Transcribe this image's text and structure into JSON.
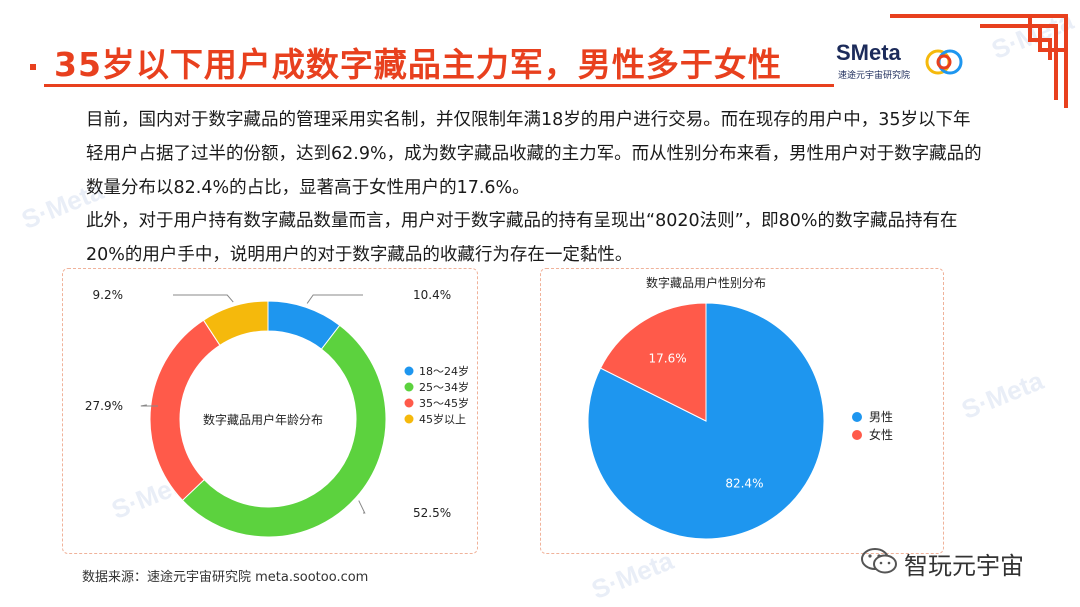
{
  "header": {
    "title": "35岁以下用户成数字藏品主力军，男性多于女性"
  },
  "logo": {
    "word": "SMeta",
    "sub": "速途元宇宙研究院"
  },
  "body": {
    "para1": "目前，国内对于数字藏品的管理采用实名制，并仅限制年满18岁的用户进行交易。而在现存的用户中，35岁以下年轻用户占据了过半的份额，达到62.9%，成为数字藏品收藏的主力军。而从性别分布来看，男性用户对于数字藏品的数量分布以82.4%的占比，显著高于女性用户的17.6%。",
    "para2": "此外，对于用户持有数字藏品数量而言，用户对于数字藏品的持有呈现出“8020法则”，即80%的数字藏品持有在20%的用户手中，说明用户的对于数字藏品的收藏行为存在一定黏性。"
  },
  "footer": {
    "source": "数据来源：速途元宇宙研究院 meta.sootoo.com",
    "wechat": "智玩元宇宙"
  },
  "colors": {
    "accent": "#e8401e",
    "blue": "#1e96ef",
    "green": "#5cd23e",
    "red": "#ff5a4a",
    "yellow": "#f5b90c"
  },
  "chart_data": [
    {
      "type": "pie",
      "variant": "donut",
      "title": "数字藏品用户年龄分布",
      "categories": [
        "18～24岁",
        "25～34岁",
        "35～45岁",
        "45岁以上"
      ],
      "values": [
        10.4,
        52.5,
        27.9,
        9.2
      ],
      "labels": [
        "10.4%",
        "52.5%",
        "27.9%",
        "9.2%"
      ],
      "colors": [
        "#1e96ef",
        "#5cd23e",
        "#ff5a4a",
        "#f5b90c"
      ],
      "legend": "right"
    },
    {
      "type": "pie",
      "title": "数字藏品用户性别分布",
      "categories": [
        "男性",
        "女性"
      ],
      "values": [
        82.4,
        17.6
      ],
      "labels": [
        "82.4%",
        "17.6%"
      ],
      "colors": [
        "#1e96ef",
        "#ff5a4a"
      ],
      "legend": "right"
    }
  ]
}
